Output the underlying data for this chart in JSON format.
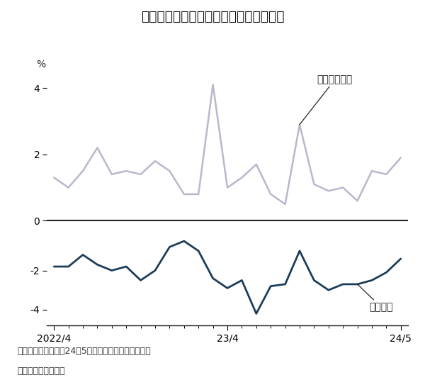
{
  "title": "実質賃金のマイナス幅は縮小しつつある",
  "ylabel": "%",
  "note_line1": "（注）前年同月比。24年5月は速報値、ほかは確報値",
  "note_line2": "（出所）厚生労働省",
  "label_nominal": "現金給与総額",
  "label_real": "実質賃金",
  "xtick_labels": [
    "2022/4",
    "23/4",
    "24/5"
  ],
  "nominal_color": "#b8b8cc",
  "real_color": "#1c3d5a",
  "zero_line_color": "#222222",
  "background_color": "#ffffff",
  "nominal_wages": [
    1.3,
    1.0,
    1.5,
    2.2,
    1.4,
    1.5,
    1.4,
    1.8,
    1.5,
    0.8,
    0.8,
    4.1,
    1.0,
    1.3,
    1.7,
    0.8,
    0.5,
    2.9,
    1.1,
    0.9,
    1.0,
    0.6,
    1.5,
    1.4,
    1.9
  ],
  "real_wages": [
    -1.8,
    -1.8,
    -1.2,
    -1.7,
    -2.0,
    -1.8,
    -2.5,
    -2.0,
    -0.8,
    -0.5,
    -1.0,
    -2.4,
    -2.9,
    -2.5,
    -4.2,
    -2.8,
    -2.7,
    -1.0,
    -2.5,
    -3.0,
    -2.7,
    -2.7,
    -2.5,
    -2.1,
    -1.4
  ],
  "n_points": 25,
  "annotation_nominal_idx": 17,
  "annotation_real_idx": 21
}
